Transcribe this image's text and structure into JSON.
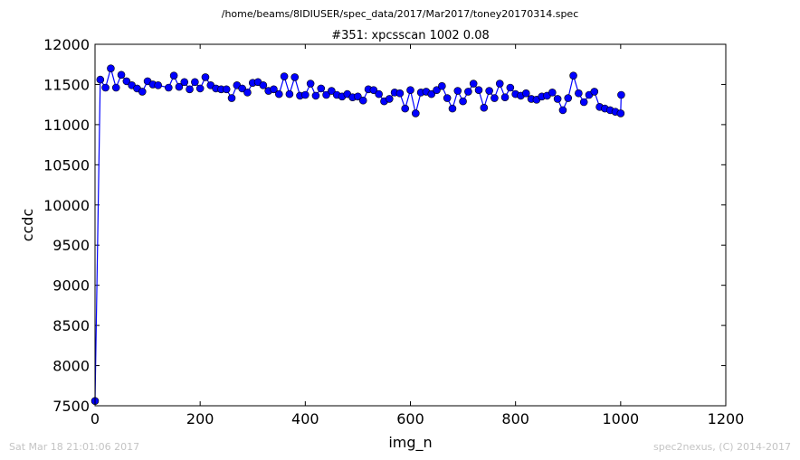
{
  "suptitle": "/home/beams/8IDIUSER/spec_data/2017/Mar2017/toney20170314.spec",
  "footer": {
    "timestamp": "Sat Mar 18 21:01:06 2017",
    "credit": "spec2nexus, (C) 2014-2017"
  },
  "colors": {
    "series": "#0000ff",
    "frame": "#000000",
    "footer_text": "#c4c4c4"
  },
  "chart_data": {
    "type": "line",
    "title": "#351: xpcsscan 1002 0.08",
    "xlabel": "img_n",
    "ylabel": "ccdc",
    "xlim": [
      0,
      1200
    ],
    "ylim": [
      7500,
      12000
    ],
    "xticks": [
      0,
      200,
      400,
      600,
      800,
      1000,
      1200
    ],
    "yticks": [
      7500,
      8000,
      8500,
      9000,
      9500,
      10000,
      10500,
      11000,
      11500,
      12000
    ],
    "grid": false,
    "marker": "circle",
    "series": [
      {
        "x": [
          0,
          10,
          20,
          30,
          40,
          50,
          60,
          70,
          80,
          90,
          100,
          110,
          120,
          140,
          150,
          160,
          170,
          180,
          190,
          200,
          210,
          220,
          230,
          240,
          250,
          260,
          270,
          280,
          290,
          300,
          310,
          320,
          330,
          340,
          350,
          360,
          370,
          380,
          390,
          400,
          410,
          420,
          430,
          440,
          450,
          460,
          470,
          480,
          490,
          500,
          510,
          520,
          530,
          540,
          550,
          560,
          570,
          580,
          590,
          600,
          610,
          620,
          630,
          640,
          650,
          660,
          670,
          680,
          690,
          700,
          710,
          720,
          730,
          740,
          750,
          760,
          770,
          780,
          790,
          800,
          810,
          820,
          830,
          840,
          850,
          860,
          870,
          880,
          890,
          900,
          910,
          920,
          930,
          940,
          950,
          960,
          970,
          980,
          990,
          1000,
          1001
        ],
        "values": [
          7560,
          11560,
          11460,
          11700,
          11460,
          11620,
          11540,
          11490,
          11450,
          11410,
          11540,
          11500,
          11490,
          11460,
          11610,
          11470,
          11530,
          11440,
          11530,
          11450,
          11590,
          11490,
          11450,
          11440,
          11440,
          11330,
          11490,
          11450,
          11400,
          11520,
          11530,
          11490,
          11420,
          11440,
          11380,
          11600,
          11380,
          11590,
          11360,
          11370,
          11510,
          11360,
          11450,
          11370,
          11420,
          11370,
          11350,
          11380,
          11340,
          11350,
          11300,
          11440,
          11430,
          11380,
          11290,
          11320,
          11400,
          11390,
          11200,
          11430,
          11140,
          11400,
          11410,
          11380,
          11430,
          11480,
          11330,
          11200,
          11420,
          11290,
          11410,
          11510,
          11430,
          11210,
          11420,
          11330,
          11510,
          11340,
          11460,
          11380,
          11360,
          11390,
          11320,
          11310,
          11350,
          11360,
          11400,
          11320,
          11180,
          11330,
          11610,
          11390,
          11280,
          11370,
          11410,
          11220,
          11200,
          11180,
          11160,
          11140,
          11370
        ]
      }
    ]
  }
}
